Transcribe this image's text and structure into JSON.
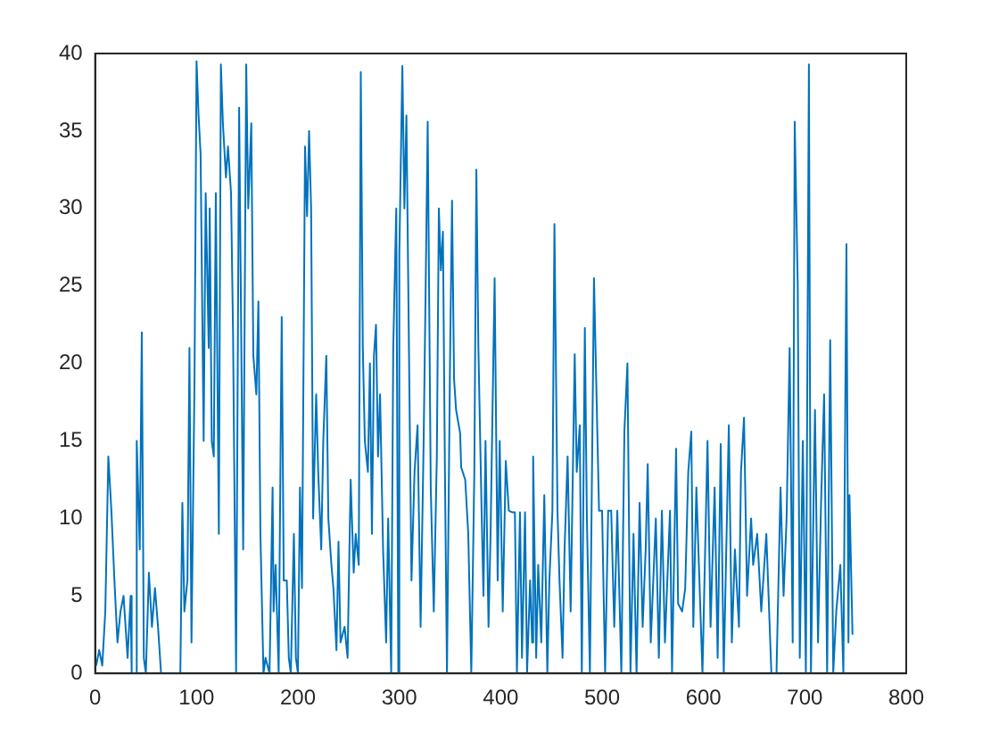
{
  "chart_data": {
    "type": "line",
    "xlim": [
      0,
      800
    ],
    "ylim": [
      0,
      40
    ],
    "xticks": [
      0,
      100,
      200,
      300,
      400,
      500,
      600,
      700,
      800
    ],
    "yticks": [
      0,
      5,
      10,
      15,
      20,
      25,
      30,
      35,
      40
    ],
    "grid": false,
    "legend": false,
    "marker": "none",
    "line_style": "solid",
    "series": [
      {
        "color": "#0072bd",
        "x": [
          1,
          4,
          7,
          10,
          13,
          16,
          19,
          22,
          25,
          28,
          32,
          35,
          36,
          40,
          41,
          44,
          46,
          48,
          50,
          53,
          56,
          59,
          62,
          65,
          84,
          86,
          88,
          91,
          93,
          95,
          98,
          100,
          102,
          104,
          107,
          109,
          112,
          113,
          115,
          117,
          119,
          122,
          124,
          126,
          129,
          131,
          134,
          136,
          139,
          142,
          146,
          149,
          151,
          154,
          156,
          159,
          161,
          163,
          166,
          168,
          172,
          175,
          176,
          178,
          181,
          184,
          186,
          189,
          191,
          193,
          196,
          198,
          200,
          202,
          204,
          207,
          209,
          211,
          213,
          215,
          218,
          220,
          223,
          225,
          228,
          230,
          233,
          235,
          238,
          240,
          242,
          246,
          249,
          250,
          252,
          255,
          257,
          260,
          262,
          264,
          266,
          269,
          271,
          273,
          275,
          277,
          279,
          281,
          284,
          287,
          289,
          292,
          294,
          297,
          299,
          300,
          303,
          305,
          307,
          309,
          312,
          315,
          318,
          321,
          324,
          326,
          328,
          331,
          334,
          337,
          339,
          341,
          343,
          345,
          347,
          350,
          352,
          354,
          356,
          360,
          361,
          365,
          368,
          371,
          374,
          376,
          378,
          381,
          383,
          385,
          388,
          390,
          394,
          397,
          399,
          402,
          405,
          408,
          411,
          414,
          416,
          419,
          421,
          424,
          426,
          429,
          431,
          432,
          435,
          437,
          440,
          443,
          446,
          448,
          451,
          453,
          456,
          458,
          461,
          463,
          466,
          469,
          473,
          475,
          478,
          480,
          483,
          485,
          488,
          492,
          497,
          500,
          503,
          506,
          509,
          512,
          515,
          519,
          521,
          522,
          525,
          528,
          531,
          534,
          537,
          540,
          543,
          545,
          548,
          553,
          556,
          559,
          562,
          567,
          569,
          573,
          575,
          579,
          582,
          585,
          588,
          590,
          593,
          596,
          599,
          604,
          607,
          611,
          614,
          617,
          620,
          625,
          628,
          631,
          635,
          637,
          640,
          643,
          647,
          649,
          653,
          657,
          662,
          667,
          672,
          676,
          679,
          682,
          685,
          688,
          690,
          693,
          695,
          698,
          701,
          704,
          706,
          710,
          713,
          716,
          719,
          722,
          725,
          728,
          731,
          735,
          738,
          741,
          743,
          744,
          747
        ],
        "values": [
          0.5,
          1.5,
          0.5,
          4,
          14,
          10.5,
          6,
          2,
          4,
          5,
          1,
          5,
          0,
          0,
          15,
          8,
          22,
          1,
          0,
          6.5,
          3,
          5.5,
          3,
          0,
          0,
          11,
          4,
          6,
          21,
          2,
          19,
          39.5,
          36,
          33.5,
          15,
          31,
          21,
          30,
          15,
          14,
          31,
          9,
          39.3,
          35.5,
          32,
          34,
          31,
          22,
          0,
          36.5,
          8,
          39.3,
          30,
          35.5,
          20.5,
          18,
          24,
          9,
          0,
          1,
          0,
          12,
          4,
          7,
          0,
          23,
          6,
          6,
          1,
          0,
          9,
          1,
          0,
          12,
          5.5,
          34,
          29.5,
          35,
          30,
          10,
          18,
          13,
          8,
          15,
          20.5,
          10,
          7,
          5.5,
          1.5,
          8.5,
          2,
          3,
          1,
          5,
          12.5,
          6.5,
          9,
          7,
          38.8,
          21,
          15,
          13,
          20,
          9,
          20.5,
          22.5,
          14,
          18,
          8,
          2,
          10,
          0,
          21,
          30,
          0,
          27,
          39.2,
          30,
          36,
          24,
          6,
          13,
          16,
          3,
          15,
          25,
          35.6,
          12,
          4,
          14,
          30,
          26,
          28.5,
          13,
          0,
          20,
          30.5,
          19,
          17,
          15.5,
          13.3,
          12.5,
          9,
          0,
          13,
          32.5,
          21,
          11,
          5,
          15,
          3,
          9,
          25.5,
          6,
          15,
          4,
          13.7,
          10.5,
          10.4,
          10.4,
          0,
          10.4,
          1,
          10.4,
          0,
          6,
          2,
          14,
          1,
          7,
          2,
          11.5,
          0,
          6,
          10.5,
          29,
          10.5,
          6,
          1,
          8,
          14,
          4,
          20.6,
          13,
          16,
          0,
          22.3,
          10,
          0,
          25.5,
          10.5,
          10.5,
          0,
          10.5,
          10.5,
          3,
          10.5,
          0,
          10.5,
          15.6,
          20,
          0,
          9,
          0,
          11,
          3,
          8,
          13.5,
          2,
          10,
          1,
          10.5,
          2,
          10.5,
          0,
          14.5,
          4.5,
          4,
          5.5,
          13,
          15.6,
          3,
          12,
          6,
          0,
          15,
          3,
          12,
          1,
          14.8,
          0,
          16,
          2,
          8,
          3,
          13,
          16.5,
          5,
          10,
          7,
          9,
          4,
          9,
          0,
          0,
          12,
          5,
          10,
          21,
          2,
          35.6,
          25,
          1,
          15,
          0,
          39.3,
          0,
          17,
          2,
          11,
          18,
          0,
          21.5,
          0,
          4,
          7,
          0,
          27.7,
          2,
          11.5,
          2.5
        ]
      }
    ]
  }
}
